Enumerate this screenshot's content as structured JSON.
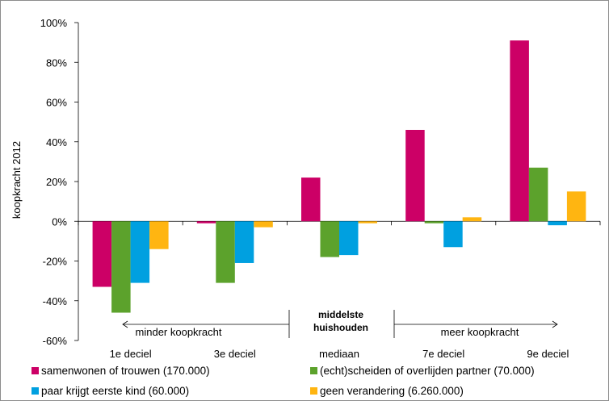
{
  "chart_data": {
    "type": "bar",
    "ylabel": "koopkracht 2012",
    "xlabel": "",
    "ylim": [
      -60,
      100
    ],
    "yticks": [
      "-60%",
      "-40%",
      "-20%",
      "0%",
      "20%",
      "40%",
      "60%",
      "80%",
      "100%"
    ],
    "categories": [
      "1e deciel",
      "3e deciel",
      "mediaan",
      "7e deciel",
      "9e deciel"
    ],
    "series": [
      {
        "name": "samenwonen of trouwen (170.000)",
        "color": "#cc0066",
        "values": [
          -33,
          -1,
          22,
          46,
          91
        ]
      },
      {
        "name": "(echt)scheiden of overlijden partner (70.000)",
        "color": "#5ca22c",
        "values": [
          -46,
          -31,
          -18,
          -1,
          27
        ]
      },
      {
        "name": "paar krijgt eerste kind (60.000)",
        "color": "#00a0e0",
        "values": [
          -31,
          -21,
          -17,
          -13,
          -2
        ]
      },
      {
        "name": "geen verandering (6.260.000)",
        "color": "#ffb511",
        "values": [
          -14,
          -3,
          -1,
          2,
          15
        ]
      }
    ],
    "grid": false,
    "legend_position": "bottom",
    "annotations": {
      "left_arrow_label": "minder koopkracht",
      "center_label_line1": "middelste",
      "center_label_line2": "huishouden",
      "right_arrow_label": "meer koopkracht"
    }
  }
}
